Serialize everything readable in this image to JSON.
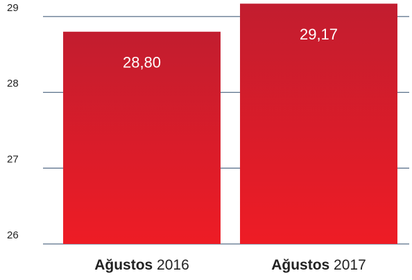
{
  "chart_data": {
    "type": "bar",
    "categories": [
      "Ağustos 2016",
      "Ağustos 2017"
    ],
    "values": [
      28.8,
      29.17
    ],
    "value_labels": [
      "28,80",
      "29,17"
    ],
    "color": "#e01f28",
    "ylim": [
      26,
      29.2
    ],
    "yticks": [
      26,
      27,
      28,
      29
    ],
    "grid": true
  }
}
